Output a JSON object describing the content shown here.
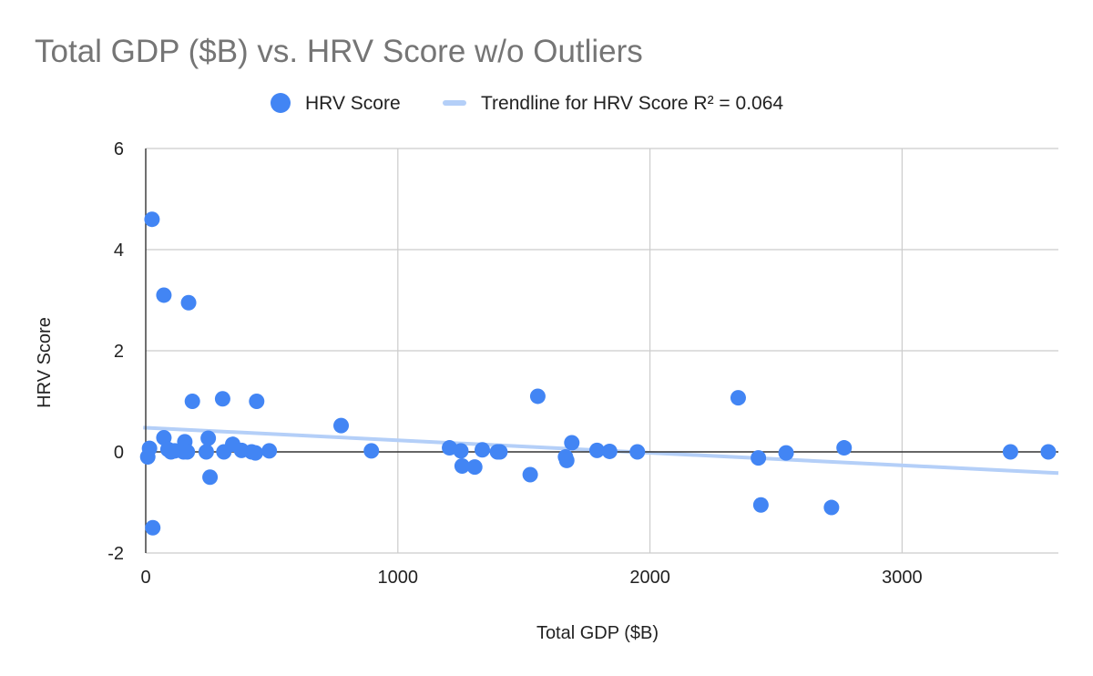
{
  "chart_data": {
    "type": "scatter",
    "title": "Total GDP ($B) vs. HRV Score w/o Outliers",
    "xlabel": "Total GDP ($B)",
    "ylabel": "HRV Score",
    "xlim": [
      0,
      3620
    ],
    "ylim": [
      -2,
      6
    ],
    "xticks": [
      {
        "value": 0,
        "label": "0"
      },
      {
        "value": 1000,
        "label": "1000"
      },
      {
        "value": 2000,
        "label": "2000"
      },
      {
        "value": 3000,
        "label": "3000"
      }
    ],
    "yticks": [
      {
        "value": -2,
        "label": "-2"
      },
      {
        "value": 0,
        "label": "0"
      },
      {
        "value": 2,
        "label": "2"
      },
      {
        "value": 4,
        "label": "4"
      },
      {
        "value": 6,
        "label": "6"
      }
    ],
    "grid": true,
    "legend_position": "top",
    "colors": {
      "points": "#4285f4",
      "trendline": "#b4cff8"
    },
    "series": [
      {
        "name": "HRV Score",
        "points": [
          {
            "x": 25,
            "y": 4.6
          },
          {
            "x": 72,
            "y": 3.1
          },
          {
            "x": 170,
            "y": 2.95
          },
          {
            "x": 185,
            "y": 1.0
          },
          {
            "x": 305,
            "y": 1.05
          },
          {
            "x": 440,
            "y": 1.0
          },
          {
            "x": 775,
            "y": 0.52
          },
          {
            "x": 1555,
            "y": 1.1
          },
          {
            "x": 2350,
            "y": 1.07
          },
          {
            "x": 8,
            "y": -0.1
          },
          {
            "x": 15,
            "y": 0.07
          },
          {
            "x": 28,
            "y": -1.5
          },
          {
            "x": 72,
            "y": 0.28
          },
          {
            "x": 88,
            "y": 0.05
          },
          {
            "x": 100,
            "y": 0.0
          },
          {
            "x": 115,
            "y": 0.02
          },
          {
            "x": 150,
            "y": 0.0
          },
          {
            "x": 155,
            "y": 0.2
          },
          {
            "x": 165,
            "y": 0.0
          },
          {
            "x": 240,
            "y": 0.0
          },
          {
            "x": 248,
            "y": 0.27
          },
          {
            "x": 255,
            "y": -0.5
          },
          {
            "x": 310,
            "y": 0.0
          },
          {
            "x": 345,
            "y": 0.15
          },
          {
            "x": 380,
            "y": 0.03
          },
          {
            "x": 420,
            "y": 0.0
          },
          {
            "x": 435,
            "y": -0.02
          },
          {
            "x": 490,
            "y": 0.02
          },
          {
            "x": 895,
            "y": 0.02
          },
          {
            "x": 1205,
            "y": 0.08
          },
          {
            "x": 1250,
            "y": 0.02
          },
          {
            "x": 1255,
            "y": -0.28
          },
          {
            "x": 1305,
            "y": -0.3
          },
          {
            "x": 1335,
            "y": 0.04
          },
          {
            "x": 1395,
            "y": 0.0
          },
          {
            "x": 1405,
            "y": 0.0
          },
          {
            "x": 1525,
            "y": -0.45
          },
          {
            "x": 1665,
            "y": -0.1
          },
          {
            "x": 1670,
            "y": -0.17
          },
          {
            "x": 1690,
            "y": 0.18
          },
          {
            "x": 1790,
            "y": 0.03
          },
          {
            "x": 1840,
            "y": 0.01
          },
          {
            "x": 1950,
            "y": 0.0
          },
          {
            "x": 2430,
            "y": -0.12
          },
          {
            "x": 2440,
            "y": -1.05
          },
          {
            "x": 2540,
            "y": -0.02
          },
          {
            "x": 2720,
            "y": -1.1
          },
          {
            "x": 2770,
            "y": 0.08
          },
          {
            "x": 3430,
            "y": 0.0
          },
          {
            "x": 3580,
            "y": 0.0
          }
        ]
      },
      {
        "name": "Trendline for HRV Score R² = 0.064",
        "type": "line",
        "points": [
          {
            "x": -10,
            "y": 0.48
          },
          {
            "x": 3620,
            "y": -0.42
          }
        ]
      }
    ]
  }
}
